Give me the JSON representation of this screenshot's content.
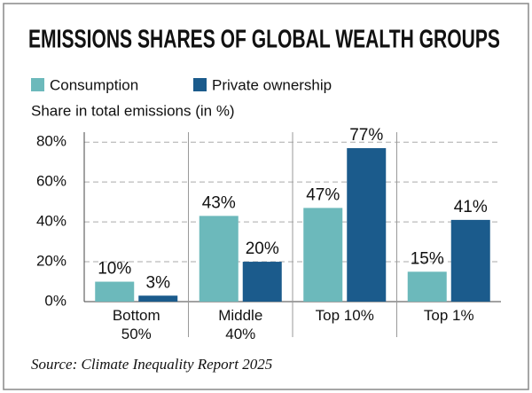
{
  "chart_data": {
    "type": "bar",
    "title": "EMISSIONS SHARES OF GLOBAL WEALTH GROUPS",
    "y_label": "Share in total emissions (in %)",
    "source": "Source: Climate Inequality Report 2025",
    "categories": [
      "Bottom 50%",
      "Middle 40%",
      "Top 10%",
      "Top 1%"
    ],
    "series": [
      {
        "name": "Consumption",
        "color": "#6cb9bb",
        "values": [
          10,
          43,
          47,
          15
        ],
        "value_labels": [
          "10%",
          "43%",
          "47%",
          "15%"
        ]
      },
      {
        "name": "Private ownership",
        "color": "#1b5b8c",
        "values": [
          3,
          20,
          77,
          41
        ],
        "value_labels": [
          "3%",
          "20%",
          "77%",
          "41%"
        ]
      }
    ],
    "ylim": [
      0,
      85
    ],
    "yticks": [
      {
        "value": 0,
        "label": "0%"
      },
      {
        "value": 20,
        "label": "20%"
      },
      {
        "value": 40,
        "label": "40%"
      },
      {
        "value": 60,
        "label": "60%"
      },
      {
        "value": 80,
        "label": "80%"
      }
    ],
    "grid": true
  }
}
